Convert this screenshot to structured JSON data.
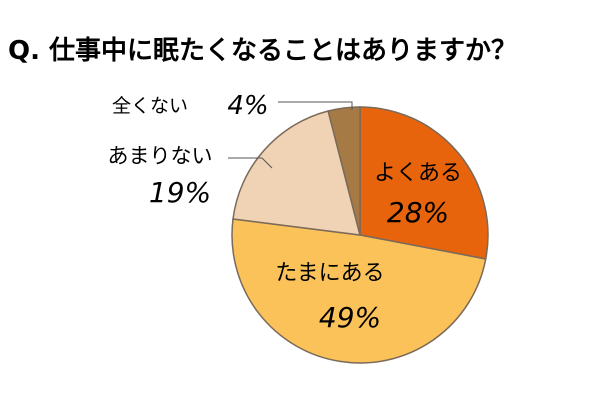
{
  "chart_data": {
    "type": "pie",
    "title": "Q. 仕事中に眠たくなることはありますか？",
    "slices": [
      {
        "label": "よくある",
        "value": 28,
        "value_text": "28%",
        "color": "#e8640c"
      },
      {
        "label": "たまにある",
        "value": 49,
        "value_text": "49%",
        "color": "#fbc25a"
      },
      {
        "label": "あまりない",
        "value": 19,
        "value_text": "19%",
        "color": "#f0d2b4"
      },
      {
        "label": "全くない",
        "value": 4,
        "value_text": "4%",
        "color": "#a67a45"
      }
    ],
    "start": "12 o'clock",
    "direction": "clockwise",
    "legend": "none",
    "outline_color": "#7a6a5a"
  }
}
